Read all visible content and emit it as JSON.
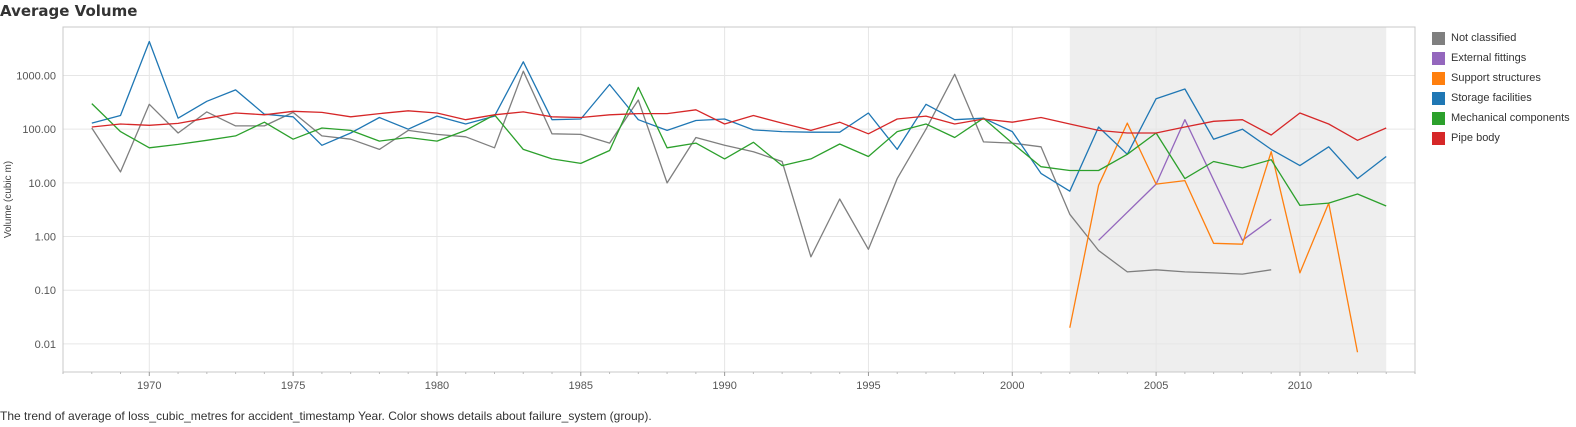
{
  "title": "Average Volume",
  "caption": "The trend of average of loss_cubic_metres for accident_timestamp Year.  Color shows details about failure_system (group).",
  "chart_data": {
    "type": "line",
    "title": "Average Volume",
    "xlabel": "",
    "ylabel": "Volume (cubic m)",
    "y_scale": "log",
    "xlim": [
      1967,
      2014
    ],
    "ylim": [
      0.003,
      8000
    ],
    "x_ticks": [
      1970,
      1975,
      1980,
      1985,
      1990,
      1995,
      2000,
      2005,
      2010
    ],
    "y_ticks": [
      0.01,
      0.1,
      1,
      10,
      100,
      1000
    ],
    "y_tick_labels": [
      "0.01",
      "0.10",
      "1.00",
      "10.00",
      "100.00",
      "1000.00"
    ],
    "highlight_band": [
      2002,
      2013
    ],
    "grid": true,
    "legend_position": "right",
    "series": [
      {
        "name": "Not classified",
        "color": "#7f7f7f",
        "points": [
          [
            1968,
            105
          ],
          [
            1969,
            16
          ],
          [
            1970,
            290
          ],
          [
            1971,
            85
          ],
          [
            1972,
            210
          ],
          [
            1973,
            115
          ],
          [
            1974,
            115
          ],
          [
            1975,
            205
          ],
          [
            1976,
            75
          ],
          [
            1977,
            65
          ],
          [
            1978,
            42
          ],
          [
            1979,
            95
          ],
          [
            1980,
            80
          ],
          [
            1981,
            72
          ],
          [
            1982,
            45
          ],
          [
            1983,
            1200
          ],
          [
            1984,
            82
          ],
          [
            1985,
            80
          ],
          [
            1986,
            55
          ],
          [
            1987,
            350
          ],
          [
            1988,
            10
          ],
          [
            1989,
            70
          ],
          [
            1990,
            50
          ],
          [
            1991,
            38
          ],
          [
            1992,
            25
          ],
          [
            1993,
            0.42
          ],
          [
            1994,
            5
          ],
          [
            1995,
            0.58
          ],
          [
            1996,
            12
          ],
          [
            1997,
            100
          ],
          [
            1998,
            1050
          ],
          [
            1999,
            58
          ],
          [
            2000,
            55
          ],
          [
            2001,
            47
          ],
          [
            2002,
            2.6
          ],
          [
            2003,
            0.55
          ],
          [
            2004,
            0.22
          ],
          [
            2005,
            0.24
          ],
          [
            2006,
            0.22
          ],
          [
            2007,
            0.21
          ],
          [
            2008,
            0.2
          ],
          [
            2009,
            0.24
          ]
        ]
      },
      {
        "name": "External fittings",
        "color": "#9467bd",
        "points": [
          [
            2003,
            0.85
          ],
          [
            2005,
            9.5
          ],
          [
            2006,
            150
          ],
          [
            2008,
            0.85
          ],
          [
            2009,
            2.1
          ]
        ]
      },
      {
        "name": "Support structures",
        "color": "#ff7f0e",
        "points": [
          [
            2002,
            0.02
          ],
          [
            2003,
            9
          ],
          [
            2004,
            130
          ],
          [
            2005,
            9.5
          ],
          [
            2006,
            11
          ],
          [
            2007,
            0.75
          ],
          [
            2008,
            0.72
          ],
          [
            2009,
            38
          ],
          [
            2010,
            0.21
          ],
          [
            2011,
            4.2
          ],
          [
            2012,
            0.007
          ]
        ]
      },
      {
        "name": "Storage facilities",
        "color": "#1f77b4",
        "points": [
          [
            1968,
            130
          ],
          [
            1969,
            180
          ],
          [
            1970,
            4300
          ],
          [
            1971,
            160
          ],
          [
            1972,
            330
          ],
          [
            1973,
            540
          ],
          [
            1974,
            190
          ],
          [
            1975,
            170
          ],
          [
            1976,
            50
          ],
          [
            1977,
            85
          ],
          [
            1978,
            165
          ],
          [
            1979,
            100
          ],
          [
            1980,
            175
          ],
          [
            1981,
            125
          ],
          [
            1982,
            175
          ],
          [
            1983,
            1800
          ],
          [
            1984,
            150
          ],
          [
            1985,
            155
          ],
          [
            1986,
            680
          ],
          [
            1987,
            150
          ],
          [
            1988,
            95
          ],
          [
            1989,
            145
          ],
          [
            1990,
            155
          ],
          [
            1991,
            97
          ],
          [
            1992,
            90
          ],
          [
            1993,
            88
          ],
          [
            1994,
            88
          ],
          [
            1995,
            200
          ],
          [
            1996,
            42
          ],
          [
            1997,
            290
          ],
          [
            1998,
            150
          ],
          [
            1999,
            160
          ],
          [
            2000,
            90
          ],
          [
            2001,
            15
          ],
          [
            2002,
            7
          ],
          [
            2003,
            110
          ],
          [
            2004,
            34
          ],
          [
            2005,
            370
          ],
          [
            2006,
            560
          ],
          [
            2007,
            65
          ],
          [
            2008,
            100
          ],
          [
            2009,
            42
          ],
          [
            2010,
            21
          ],
          [
            2011,
            47
          ],
          [
            2012,
            12
          ],
          [
            2013,
            31
          ]
        ]
      },
      {
        "name": "Mechanical components",
        "color": "#2ca02c",
        "points": [
          [
            1968,
            300
          ],
          [
            1969,
            90
          ],
          [
            1970,
            45
          ],
          [
            1971,
            52
          ],
          [
            1972,
            62
          ],
          [
            1973,
            75
          ],
          [
            1974,
            135
          ],
          [
            1975,
            65
          ],
          [
            1976,
            105
          ],
          [
            1977,
            95
          ],
          [
            1978,
            60
          ],
          [
            1979,
            70
          ],
          [
            1980,
            60
          ],
          [
            1981,
            95
          ],
          [
            1982,
            185
          ],
          [
            1983,
            42
          ],
          [
            1984,
            28
          ],
          [
            1985,
            23
          ],
          [
            1986,
            40
          ],
          [
            1987,
            600
          ],
          [
            1988,
            45
          ],
          [
            1989,
            55
          ],
          [
            1990,
            28
          ],
          [
            1991,
            57
          ],
          [
            1992,
            21
          ],
          [
            1993,
            28
          ],
          [
            1994,
            53
          ],
          [
            1995,
            31
          ],
          [
            1996,
            90
          ],
          [
            1997,
            125
          ],
          [
            1998,
            70
          ],
          [
            1999,
            160
          ],
          [
            2000,
            55
          ],
          [
            2001,
            20
          ],
          [
            2002,
            17
          ],
          [
            2003,
            17
          ],
          [
            2004,
            34
          ],
          [
            2005,
            85
          ],
          [
            2006,
            12
          ],
          [
            2007,
            25
          ],
          [
            2008,
            19
          ],
          [
            2009,
            27
          ],
          [
            2010,
            3.8
          ],
          [
            2011,
            4.2
          ],
          [
            2012,
            6.2
          ],
          [
            2013,
            3.7
          ]
        ]
      },
      {
        "name": "Pipe body",
        "color": "#d62728",
        "points": [
          [
            1968,
            110
          ],
          [
            1969,
            125
          ],
          [
            1970,
            118
          ],
          [
            1971,
            128
          ],
          [
            1972,
            160
          ],
          [
            1973,
            200
          ],
          [
            1974,
            185
          ],
          [
            1975,
            215
          ],
          [
            1976,
            205
          ],
          [
            1977,
            170
          ],
          [
            1978,
            195
          ],
          [
            1979,
            220
          ],
          [
            1980,
            200
          ],
          [
            1981,
            150
          ],
          [
            1982,
            185
          ],
          [
            1983,
            210
          ],
          [
            1984,
            170
          ],
          [
            1985,
            165
          ],
          [
            1986,
            185
          ],
          [
            1987,
            195
          ],
          [
            1988,
            195
          ],
          [
            1989,
            230
          ],
          [
            1990,
            125
          ],
          [
            1991,
            180
          ],
          [
            1992,
            130
          ],
          [
            1993,
            95
          ],
          [
            1994,
            135
          ],
          [
            1995,
            82
          ],
          [
            1996,
            155
          ],
          [
            1997,
            175
          ],
          [
            1998,
            125
          ],
          [
            1999,
            155
          ],
          [
            2000,
            135
          ],
          [
            2001,
            165
          ],
          [
            2002,
            125
          ],
          [
            2003,
            95
          ],
          [
            2004,
            85
          ],
          [
            2005,
            85
          ],
          [
            2006,
            110
          ],
          [
            2007,
            140
          ],
          [
            2008,
            150
          ],
          [
            2009,
            78
          ],
          [
            2010,
            200
          ],
          [
            2011,
            125
          ],
          [
            2012,
            62
          ],
          [
            2013,
            105
          ]
        ]
      }
    ]
  }
}
